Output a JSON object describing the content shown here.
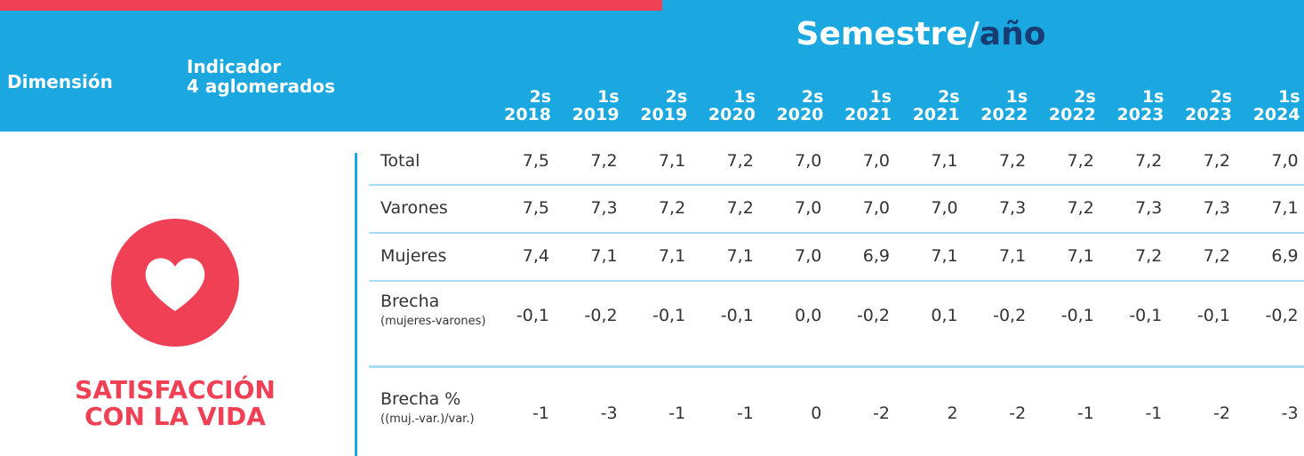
{
  "header": {
    "title_main": "Semestre/",
    "title_accent": "año",
    "dimension": "Dimensión",
    "indicator": [
      "Indicador",
      "4 aglomerados"
    ],
    "columns": [
      {
        "semester": "2s",
        "year": "2018"
      },
      {
        "semester": "1s",
        "year": "2019"
      },
      {
        "semester": "2s",
        "year": "2019"
      },
      {
        "semester": "1s",
        "year": "2020"
      },
      {
        "semester": "2s",
        "year": "2020"
      },
      {
        "semester": "1s",
        "year": "2021"
      },
      {
        "semester": "2s",
        "year": "2021"
      },
      {
        "semester": "1s",
        "year": "2022"
      },
      {
        "semester": "2s",
        "year": "2022"
      },
      {
        "semester": "1s",
        "year": "2023"
      },
      {
        "semester": "2s",
        "year": "2023"
      },
      {
        "semester": "1s",
        "year": "2024"
      }
    ]
  },
  "dimension_label": [
    "SATISFACCIÓN",
    "CON LA VIDA"
  ],
  "rows": [
    {
      "label": "Total",
      "values": [
        "7,5",
        "7,2",
        "7,1",
        "7,2",
        "7,0",
        "7,0",
        "7,1",
        "7,2",
        "7,2",
        "7,2",
        "7,2",
        "7,0"
      ]
    },
    {
      "label": "Varones",
      "values": [
        "7,5",
        "7,3",
        "7,2",
        "7,2",
        "7,0",
        "7,0",
        "7,0",
        "7,3",
        "7,2",
        "7,3",
        "7,3",
        "7,1"
      ]
    },
    {
      "label": "Mujeres",
      "values": [
        "7,4",
        "7,1",
        "7,1",
        "7,1",
        "7,0",
        "6,9",
        "7,1",
        "7,1",
        "7,1",
        "7,2",
        "7,2",
        "6,9"
      ]
    },
    {
      "label": "Brecha",
      "sublabel": "(mujeres-varones)",
      "values": [
        "-0,1",
        "-0,2",
        "-0,1",
        "-0,1",
        "0,0",
        "-0,2",
        "0,1",
        "-0,2",
        "-0,1",
        "-0,1",
        "-0,1",
        "-0,2"
      ]
    },
    {
      "label": "Brecha %",
      "sublabel": "((muj.-var.)/var.)",
      "values": [
        "-1",
        "-3",
        "-1",
        "-1",
        "0",
        "-2",
        "2",
        "-2",
        "-1",
        "-1",
        "-2",
        "-3"
      ]
    }
  ]
}
